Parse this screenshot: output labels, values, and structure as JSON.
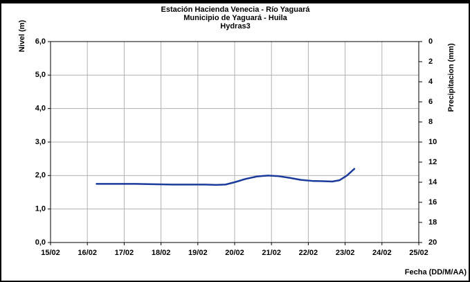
{
  "chart_data": {
    "type": "line",
    "title": [
      "Estación Hacienda Venecia - Río  Yaguará",
      "Municipio de Yaguará - Huila",
      "Hydras3"
    ],
    "ylabel": "Nivel (m)",
    "y2label": "Precipitacion (mm)",
    "xlabel": "Fecha (DD/M/AA)",
    "xlim": [
      15,
      25
    ],
    "xticks": [
      {
        "value": 15,
        "label": "15/02"
      },
      {
        "value": 16,
        "label": "16/02"
      },
      {
        "value": 17,
        "label": "17/02"
      },
      {
        "value": 18,
        "label": "18/02"
      },
      {
        "value": 19,
        "label": "19/02"
      },
      {
        "value": 20,
        "label": "20/02"
      },
      {
        "value": 21,
        "label": "21/02"
      },
      {
        "value": 22,
        "label": "22/02"
      },
      {
        "value": 23,
        "label": "23/02"
      },
      {
        "value": 24,
        "label": "24/02"
      },
      {
        "value": 25,
        "label": "25/02"
      }
    ],
    "ylim": [
      0,
      6
    ],
    "yticks": [
      {
        "value": 0,
        "label": "0,0"
      },
      {
        "value": 1,
        "label": "1,0"
      },
      {
        "value": 2,
        "label": "2,0"
      },
      {
        "value": 3,
        "label": "3,0"
      },
      {
        "value": 4,
        "label": "4,0"
      },
      {
        "value": 5,
        "label": "5,0"
      },
      {
        "value": 6,
        "label": "6,0"
      }
    ],
    "y2lim": [
      20,
      0
    ],
    "y2ticks": [
      0,
      2,
      4,
      6,
      8,
      10,
      12,
      14,
      16,
      18,
      20
    ],
    "grid": true,
    "series": [
      {
        "color": "#1a3a9c",
        "x": [
          16.25,
          16.8,
          17.3,
          17.8,
          18.3,
          18.8,
          19.2,
          19.5,
          19.75,
          20.0,
          20.3,
          20.6,
          20.9,
          21.2,
          21.5,
          21.8,
          22.1,
          22.4,
          22.65,
          22.85,
          23.05,
          23.25
        ],
        "values": [
          1.75,
          1.75,
          1.75,
          1.74,
          1.73,
          1.73,
          1.73,
          1.72,
          1.73,
          1.8,
          1.9,
          1.97,
          2.0,
          1.98,
          1.93,
          1.87,
          1.84,
          1.83,
          1.82,
          1.86,
          2.0,
          2.2
        ]
      }
    ]
  }
}
